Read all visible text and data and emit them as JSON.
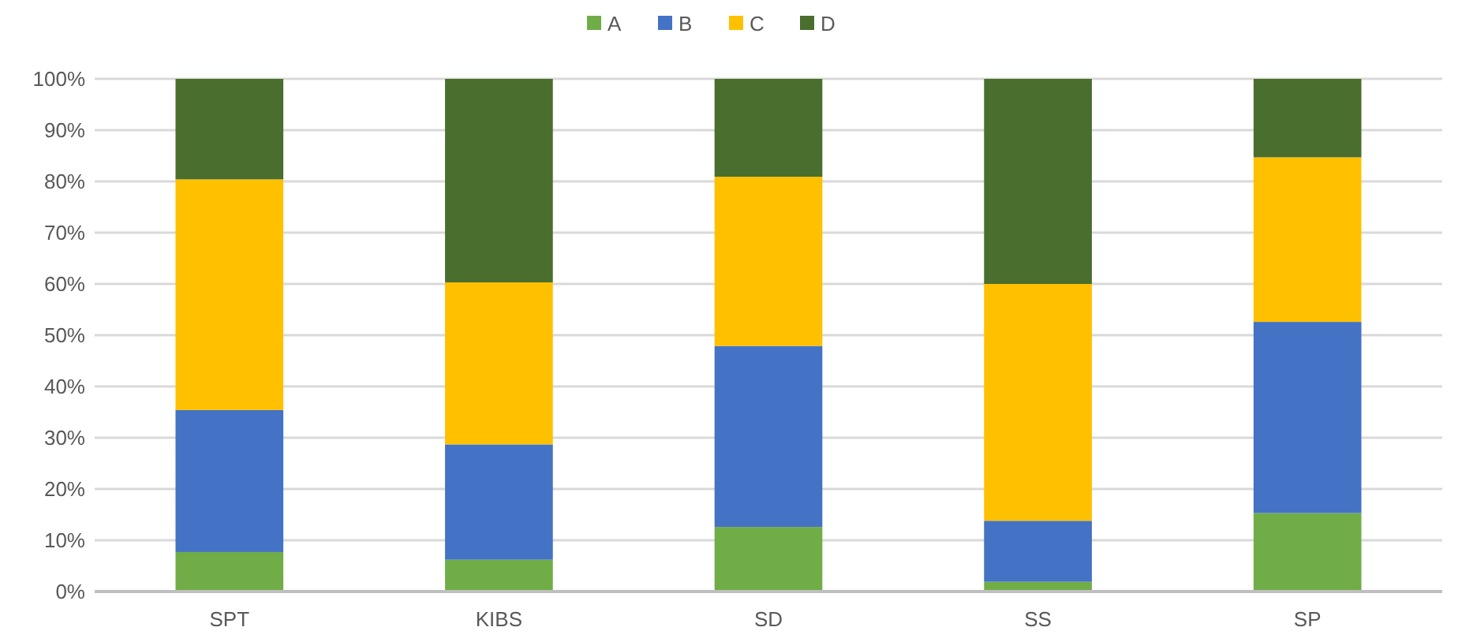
{
  "chart_data": {
    "type": "bar",
    "stacked": true,
    "categories": [
      "SPT",
      "KIBS",
      "SD",
      "SS",
      "SP"
    ],
    "series": [
      {
        "name": "A",
        "color": "#70ad47",
        "values": [
          7.7,
          6.2,
          12.6,
          1.9,
          15.3
        ]
      },
      {
        "name": "B",
        "color": "#4472c4",
        "values": [
          27.7,
          22.5,
          35.3,
          11.9,
          37.3
        ]
      },
      {
        "name": "C",
        "color": "#ffc000",
        "values": [
          45,
          31.6,
          33,
          46.2,
          32.1
        ]
      },
      {
        "name": "D",
        "color": "#4a6e2e",
        "values": [
          19.6,
          39.7,
          19.1,
          40,
          15.3
        ]
      }
    ],
    "ylim": [
      0,
      100
    ],
    "yticks": [
      {
        "value": 0,
        "label": "0%"
      },
      {
        "value": 10,
        "label": "10%"
      },
      {
        "value": 20,
        "label": "20%"
      },
      {
        "value": 30,
        "label": "30%"
      },
      {
        "value": 40,
        "label": "40%"
      },
      {
        "value": 50,
        "label": "50%"
      },
      {
        "value": 60,
        "label": "60%"
      },
      {
        "value": 70,
        "label": "70%"
      },
      {
        "value": 80,
        "label": "80%"
      },
      {
        "value": 90,
        "label": "90%"
      },
      {
        "value": 100,
        "label": "100%"
      }
    ],
    "grid": "y",
    "legend": "top"
  }
}
